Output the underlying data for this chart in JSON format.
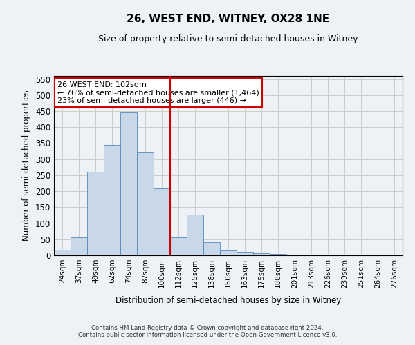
{
  "title": "26, WEST END, WITNEY, OX28 1NE",
  "subtitle": "Size of property relative to semi-detached houses in Witney",
  "xlabel": "Distribution of semi-detached houses by size in Witney",
  "ylabel": "Number of semi-detached properties",
  "categories": [
    "24sqm",
    "37sqm",
    "49sqm",
    "62sqm",
    "74sqm",
    "87sqm",
    "100sqm",
    "112sqm",
    "125sqm",
    "138sqm",
    "150sqm",
    "163sqm",
    "175sqm",
    "188sqm",
    "201sqm",
    "213sqm",
    "226sqm",
    "239sqm",
    "251sqm",
    "264sqm",
    "276sqm"
  ],
  "values": [
    17,
    57,
    260,
    345,
    445,
    322,
    210,
    55,
    128,
    40,
    15,
    10,
    7,
    4,
    1,
    0,
    0,
    1,
    0,
    0,
    1
  ],
  "bar_color": "#c8d8e8",
  "bar_edge_color": "#5588bb",
  "grid_color": "#cccccc",
  "vline_color": "#cc0000",
  "annotation_text": "26 WEST END: 102sqm\n← 76% of semi-detached houses are smaller (1,464)\n23% of semi-detached houses are larger (446) →",
  "annotation_box_color": "#ffffff",
  "annotation_box_edge": "#cc0000",
  "ylim": [
    0,
    560
  ],
  "yticks": [
    0,
    50,
    100,
    150,
    200,
    250,
    300,
    350,
    400,
    450,
    500,
    550
  ],
  "footnote": "Contains HM Land Registry data © Crown copyright and database right 2024.\nContains public sector information licensed under the Open Government Licence v3.0.",
  "bg_color": "#eef2f7"
}
